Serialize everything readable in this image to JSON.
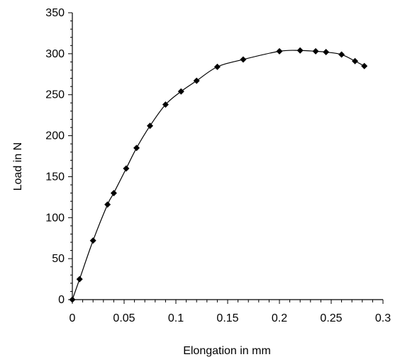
{
  "chart_data": {
    "type": "scatter",
    "title": "",
    "xlabel": "Elongation in mm",
    "ylabel": "Load in N",
    "xlim": [
      0,
      0.3
    ],
    "ylim": [
      0,
      350
    ],
    "x_ticks": [
      0,
      0.05,
      0.1,
      0.15,
      0.2,
      0.25,
      0.3
    ],
    "x_tick_labels": [
      "0",
      "0.05",
      "0.1",
      "0.15",
      "0.2",
      "0.25",
      "0.3"
    ],
    "y_ticks": [
      0,
      50,
      100,
      150,
      200,
      250,
      300,
      350
    ],
    "y_tick_labels": [
      "0",
      "50",
      "100",
      "150",
      "200",
      "250",
      "300",
      "350"
    ],
    "grid": false,
    "legend": "none",
    "marker": "diamond",
    "line": "smooth",
    "color": "#000000",
    "series": [
      {
        "x": [
          0,
          0.007,
          0.02,
          0.034,
          0.04,
          0.052,
          0.062,
          0.075,
          0.09,
          0.105,
          0.12,
          0.14,
          0.165,
          0.2,
          0.22,
          0.235,
          0.245,
          0.26,
          0.273,
          0.282
        ],
        "y": [
          0,
          25,
          72,
          116,
          130,
          160,
          185,
          212,
          238,
          254,
          267,
          284,
          293,
          303,
          304,
          303,
          302,
          299,
          291,
          285
        ]
      }
    ]
  }
}
